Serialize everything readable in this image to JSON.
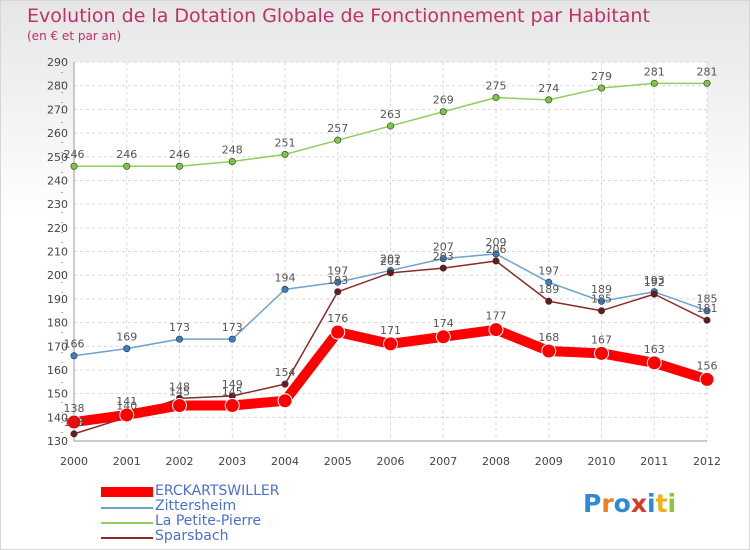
{
  "header": {
    "title": "Evolution de la Dotation Globale de Fonctionnement par Habitant",
    "subtitle": "(en € et par an)"
  },
  "logo": {
    "text": "Proxiti",
    "colors": [
      "#2e8ad8",
      "#f07f1a",
      "#2e8ad8",
      "#d83a2a",
      "#2e8ad8",
      "#f0b21a",
      "#8fc23c"
    ]
  },
  "chart_data": {
    "type": "line",
    "x": [
      2000,
      2001,
      2002,
      2003,
      2004,
      2005,
      2006,
      2007,
      2008,
      2009,
      2010,
      2011,
      2012
    ],
    "ylim": [
      130,
      290
    ],
    "yticks": [
      130,
      140,
      150,
      160,
      170,
      180,
      190,
      200,
      210,
      220,
      230,
      240,
      250,
      260,
      270,
      280,
      290
    ],
    "grid": true,
    "legend_position": "bottom-left",
    "series": [
      {
        "name": "ERCKARTSWILLER",
        "color": "#ff0000",
        "emphasis": true,
        "values": [
          138,
          141,
          145,
          145,
          147,
          176,
          171,
          174,
          177,
          168,
          167,
          163,
          156
        ],
        "labels": [
          "138",
          "141",
          "145",
          "145",
          "",
          "176",
          "171",
          "174",
          "177",
          "168",
          "167",
          "163",
          "156"
        ]
      },
      {
        "name": "Zittersheim",
        "color": "#6fa2d0",
        "point_color": "#3a7fc8",
        "values": [
          166,
          169,
          173,
          173,
          194,
          197,
          202,
          207,
          209,
          197,
          189,
          193,
          185
        ],
        "labels": [
          "166",
          "169",
          "173",
          "173",
          "194",
          "197",
          "202",
          "207",
          "209",
          "197",
          "189",
          "193",
          "185"
        ]
      },
      {
        "name": "La Petite-Pierre",
        "color": "#8fd05a",
        "point_color": "#7cc842",
        "values": [
          246,
          246,
          246,
          248,
          251,
          257,
          263,
          269,
          275,
          274,
          279,
          281,
          281
        ],
        "labels": [
          "246",
          "246",
          "246",
          "248",
          "251",
          "257",
          "263",
          "269",
          "275",
          "274",
          "279",
          "281",
          "281"
        ]
      },
      {
        "name": "Sparsbach",
        "color": "#8b2a2a",
        "point_color": "#6a1a1a",
        "values": [
          133,
          140,
          148,
          149,
          154,
          193,
          201,
          203,
          206,
          189,
          185,
          192,
          181
        ],
        "labels": [
          "133",
          "140",
          "148",
          "149",
          "154",
          "193",
          "201",
          "203",
          "206",
          "189",
          "185",
          "192",
          "181"
        ]
      }
    ]
  }
}
